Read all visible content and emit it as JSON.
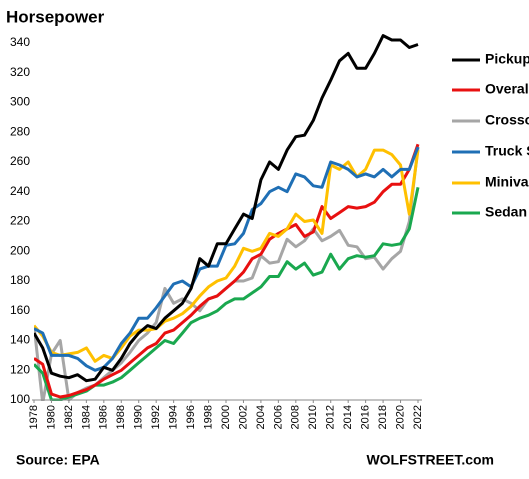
{
  "chart_data": {
    "type": "line",
    "title": "Horsepower",
    "source": "Source: EPA",
    "credit": "WOLFSTREET.com",
    "x": [
      1978,
      1979,
      1980,
      1981,
      1982,
      1983,
      1984,
      1985,
      1986,
      1987,
      1988,
      1989,
      1990,
      1991,
      1992,
      1993,
      1994,
      1995,
      1996,
      1997,
      1998,
      1999,
      2000,
      2001,
      2002,
      2003,
      2004,
      2005,
      2006,
      2007,
      2008,
      2009,
      2010,
      2011,
      2012,
      2013,
      2014,
      2015,
      2016,
      2017,
      2018,
      2019,
      2020,
      2021,
      2022
    ],
    "xlim": [
      1978,
      2022
    ],
    "xticks": [
      1978,
      1980,
      1982,
      1984,
      1986,
      1988,
      1990,
      1992,
      1994,
      1996,
      1998,
      2000,
      2002,
      2004,
      2006,
      2008,
      2010,
      2012,
      2014,
      2016,
      2018,
      2020,
      2022
    ],
    "ylim": [
      100,
      350
    ],
    "yticks": [
      100,
      120,
      140,
      160,
      180,
      200,
      220,
      240,
      260,
      280,
      300,
      320,
      340
    ],
    "series": [
      {
        "name": "Pickup",
        "color": "#000000",
        "values": [
          145,
          135,
          118,
          116,
          115,
          117,
          113,
          114,
          122,
          120,
          128,
          138,
          145,
          150,
          148,
          155,
          160,
          165,
          175,
          195,
          190,
          205,
          205,
          215,
          225,
          222,
          248,
          260,
          255,
          268,
          277,
          278,
          288,
          303,
          315,
          328,
          333,
          323,
          323,
          333,
          345,
          342,
          342,
          337,
          339
        ]
      },
      {
        "name": "Overall",
        "color": "#e81010",
        "values": [
          128,
          124,
          104,
          102,
          103,
          105,
          107,
          110,
          114,
          117,
          120,
          125,
          130,
          135,
          138,
          145,
          147,
          152,
          157,
          163,
          168,
          170,
          175,
          180,
          186,
          195,
          198,
          208,
          212,
          215,
          218,
          210,
          213,
          230,
          222,
          226,
          230,
          229,
          230,
          233,
          240,
          245,
          245,
          255,
          272
        ]
      },
      {
        "name": "Crossover",
        "color": "#a6a6a6",
        "values": [
          150,
          98,
          131,
          140,
          100,
          105,
          108,
          110,
          115,
          120,
          125,
          132,
          140,
          145,
          152,
          175,
          165,
          168,
          165,
          160,
          168,
          170,
          175,
          180,
          180,
          182,
          197,
          192,
          193,
          208,
          203,
          207,
          215,
          207,
          210,
          214,
          204,
          203,
          195,
          196,
          188,
          195,
          200,
          220,
          270
        ]
      },
      {
        "name": "Truck SUV",
        "color": "#1f6fb5",
        "values": [
          148,
          145,
          130,
          130,
          130,
          128,
          123,
          120,
          122,
          128,
          138,
          145,
          155,
          155,
          162,
          170,
          178,
          180,
          176,
          188,
          190,
          190,
          204,
          205,
          212,
          228,
          232,
          240,
          243,
          240,
          252,
          250,
          244,
          243,
          260,
          258,
          255,
          250,
          252,
          250,
          255,
          250,
          255,
          255,
          270
        ]
      },
      {
        "name": "Minivan",
        "color": "#ffc000",
        "values": [
          150,
          143,
          132,
          130,
          131,
          132,
          135,
          126,
          130,
          128,
          135,
          143,
          147,
          147,
          148,
          153,
          155,
          158,
          163,
          170,
          176,
          180,
          182,
          190,
          202,
          200,
          202,
          212,
          210,
          215,
          225,
          220,
          221,
          212,
          258,
          255,
          260,
          250,
          255,
          268,
          268,
          265,
          258,
          225,
          268
        ]
      },
      {
        "name": "Sedan",
        "color": "#1aa84f",
        "values": [
          124,
          118,
          100,
          100,
          102,
          104,
          106,
          110,
          110,
          112,
          115,
          120,
          125,
          130,
          135,
          140,
          138,
          145,
          152,
          155,
          157,
          160,
          165,
          168,
          168,
          172,
          176,
          183,
          183,
          193,
          188,
          192,
          184,
          186,
          198,
          188,
          195,
          197,
          196,
          197,
          205,
          204,
          205,
          215,
          243
        ]
      }
    ]
  }
}
